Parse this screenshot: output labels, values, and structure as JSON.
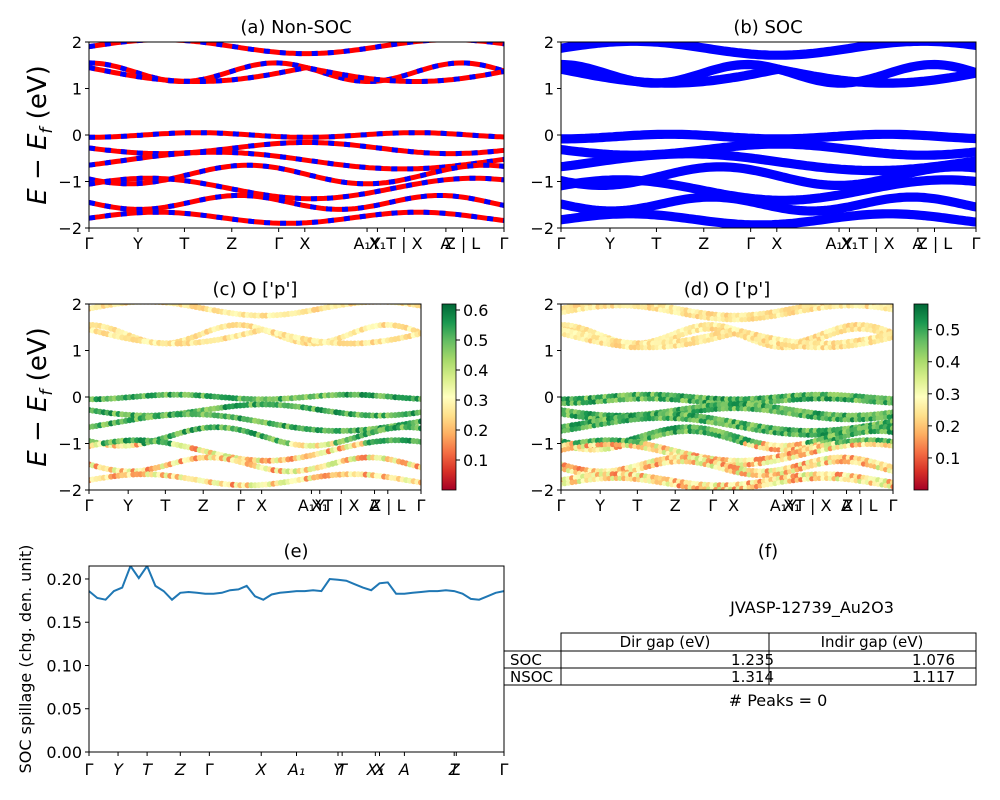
{
  "ylabel_main": "E − E",
  "ylabel_sub": "f",
  "ylabel_unit": " (eV)",
  "kpath_labels": [
    "Γ",
    "Y",
    "T",
    "Z",
    "Γ",
    "X",
    "A₁Y",
    "X₁",
    "T | X",
    "A",
    "Z | L",
    "Γ"
  ],
  "panel_a": {
    "title": "(a) Non-SOC",
    "ylim": [
      -2,
      2
    ],
    "yticks": [
      "2",
      "1",
      "0",
      "−1",
      "−2"
    ],
    "colors": [
      "#ff0000",
      "#0000ff"
    ]
  },
  "panel_b": {
    "title": "(b) SOC",
    "ylim": [
      -2,
      2
    ],
    "yticks": [
      "2",
      "1",
      "0",
      "−1",
      "−2"
    ],
    "colors": [
      "#0000ff"
    ]
  },
  "panel_c": {
    "title": "(c)  O ['p']",
    "ylim": [
      -2,
      2
    ],
    "yticks": [
      "2",
      "1",
      "0",
      "−1",
      "−2"
    ],
    "colorbar": {
      "ticks": [
        "0.6",
        "0.5",
        "0.4",
        "0.3",
        "0.2",
        "0.1"
      ],
      "range": [
        0.0,
        0.62
      ],
      "cmap": "RdYlGn"
    }
  },
  "panel_d": {
    "title": "(d) O ['p']",
    "ylim": [
      -2,
      2
    ],
    "yticks": [
      "2",
      "1",
      "0",
      "−1",
      "−2"
    ],
    "colorbar": {
      "ticks": [
        "0.5",
        "0.4",
        "0.3",
        "0.2",
        "0.1"
      ],
      "range": [
        0.0,
        0.58
      ],
      "cmap": "RdYlGn"
    }
  },
  "panel_e": {
    "title": "(e)",
    "ylabel": "SOC spillage (chg. den. unit)",
    "ylim": [
      0,
      0.215
    ],
    "yticks": [
      "0.20",
      "0.15",
      "0.10",
      "0.05",
      "0.00"
    ],
    "xticks": [
      "Γ",
      "Y",
      "T",
      "Z",
      "Γ",
      "X",
      "A₁",
      "Y",
      "T",
      "X₁",
      "X",
      "A",
      "Z",
      "L",
      "Γ"
    ],
    "line_color": "#1f77b4"
  },
  "panel_f": {
    "title": "(f)",
    "material": "JVASP-12739_Au2O3",
    "col_headers": [
      "Dir gap (eV)",
      "Indir gap (eV)"
    ],
    "rows": [
      {
        "label": "SOC",
        "dir": "1.235",
        "indir": "1.076"
      },
      {
        "label": "NSOC",
        "dir": "1.314",
        "indir": "1.117"
      }
    ],
    "peaks": "# Peaks = 0"
  },
  "chart_data": [
    {
      "type": "line",
      "title": "(a) Non-SOC",
      "ylabel": "E − E_f (eV)",
      "ylim": [
        -2,
        2
      ],
      "bands_near_vbm": [
        0.0,
        -0.3,
        -0.6,
        -0.9,
        -1.2,
        -1.5,
        -1.8
      ],
      "bands_near_cbm": [
        1.1,
        1.3,
        1.45,
        1.9
      ]
    },
    {
      "type": "line",
      "title": "(b) SOC",
      "ylim": [
        -2,
        2
      ],
      "bands_near_vbm": [
        0.0,
        -0.3,
        -0.6,
        -0.9,
        -1.2,
        -1.5,
        -1.8
      ],
      "bands_near_cbm": [
        1.1,
        1.3,
        1.45,
        1.9
      ]
    },
    {
      "type": "scatter",
      "title": "(c)  O ['p']",
      "ylim": [
        -2,
        2
      ],
      "color_range": [
        0.0,
        0.62
      ]
    },
    {
      "type": "scatter",
      "title": "(d) O ['p']",
      "ylim": [
        -2,
        2
      ],
      "color_range": [
        0.0,
        0.58
      ]
    },
    {
      "type": "line",
      "title": "(e)",
      "ylabel": "SOC spillage (chg. den. unit)",
      "ylim": [
        0,
        0.215
      ],
      "x": [
        0,
        0.02,
        0.04,
        0.06,
        0.08,
        0.1,
        0.12,
        0.14,
        0.16,
        0.18,
        0.2,
        0.22,
        0.24,
        0.26,
        0.28,
        0.3,
        0.32,
        0.34,
        0.36,
        0.38,
        0.4,
        0.42,
        0.44,
        0.46,
        0.48,
        0.5,
        0.52,
        0.54,
        0.56,
        0.58,
        0.6,
        0.62,
        0.64,
        0.66,
        0.68,
        0.7,
        0.72,
        0.74,
        0.76,
        0.78,
        0.8,
        0.82,
        0.84,
        0.86,
        0.88,
        0.9,
        0.92,
        0.94,
        0.96,
        0.98,
        1.0
      ],
      "y": [
        0.186,
        0.178,
        0.176,
        0.186,
        0.19,
        0.215,
        0.201,
        0.215,
        0.192,
        0.186,
        0.176,
        0.184,
        0.185,
        0.184,
        0.183,
        0.183,
        0.184,
        0.187,
        0.188,
        0.192,
        0.18,
        0.176,
        0.182,
        0.184,
        0.185,
        0.186,
        0.186,
        0.187,
        0.186,
        0.2,
        0.199,
        0.198,
        0.194,
        0.19,
        0.187,
        0.195,
        0.196,
        0.183,
        0.183,
        0.184,
        0.185,
        0.186,
        0.186,
        0.187,
        0.186,
        0.183,
        0.177,
        0.176,
        0.18,
        0.184,
        0.186
      ]
    }
  ]
}
